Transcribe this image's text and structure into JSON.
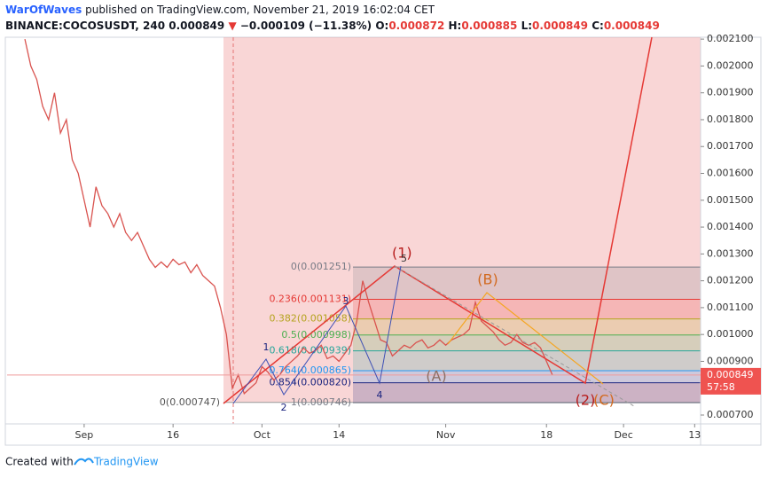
{
  "header": {
    "author": "WarOfWaves",
    "published": "published on TradingView.com, November 21, 2019 16:02:04 CET",
    "symbol": "BINANCE:COCOSUSDT, 240",
    "last": "0.000849",
    "change": "−0.000109 (−11.38%)",
    "ohlc": [
      {
        "label": "O:",
        "value": "0.000872"
      },
      {
        "label": "H:",
        "value": "0.000885"
      },
      {
        "label": "L:",
        "value": "0.000849"
      },
      {
        "label": "C:",
        "value": "0.000849"
      }
    ]
  },
  "chart_data": {
    "type": "line",
    "color": "#d9534f",
    "values": [
      null,
      null,
      null,
      0.0021,
      0.002,
      0.00195,
      0.00185,
      0.0018,
      0.0019,
      0.00175,
      0.0018,
      0.00165,
      0.0016,
      0.0015,
      0.0014,
      0.00155,
      0.00148,
      0.00145,
      0.0014,
      0.00145,
      0.00138,
      0.00135,
      0.00138,
      0.00133,
      0.00128,
      0.00125,
      0.00127,
      0.00125,
      0.00128,
      0.00126,
      0.00127,
      0.00123,
      0.00126,
      0.00122,
      0.0012,
      0.00118,
      0.0011,
      0.001,
      0.0008,
      0.00085,
      0.00078,
      0.0008,
      0.00082,
      0.00088,
      0.00086,
      0.00083,
      0.00085,
      0.00088,
      0.0009,
      0.00092,
      0.00095,
      0.00093,
      0.00094,
      0.00096,
      0.00091,
      0.00092,
      0.0009,
      0.00093,
      0.00096,
      0.00105,
      0.0012,
      0.00112,
      0.00105,
      0.00098,
      0.00097,
      0.00092,
      0.00094,
      0.00096,
      0.00095,
      0.00097,
      0.00098,
      0.00095,
      0.00096,
      0.00098,
      0.00096,
      0.00098,
      0.00099,
      0.001,
      0.00102,
      0.00112,
      0.00105,
      0.00103,
      0.00101,
      0.00098,
      0.00096,
      0.00097,
      0.001,
      0.00097,
      0.00096,
      0.00097,
      0.00095,
      0.0009,
      0.000849
    ],
    "xlim": [
      0,
      117
    ],
    "xticks": [
      {
        "value": 13,
        "label": "Sep"
      },
      {
        "value": 28,
        "label": "16"
      },
      {
        "value": 43,
        "label": "Oct"
      },
      {
        "value": 56,
        "label": "14"
      },
      {
        "value": 74,
        "label": "Nov"
      },
      {
        "value": 91,
        "label": "18"
      },
      {
        "value": 104,
        "label": "Dec"
      },
      {
        "value": 116,
        "label": "13"
      }
    ],
    "ylim": [
      0.000667,
      0.002107
    ],
    "yticks": [
      {
        "value": 0.0007,
        "label": "0.000700"
      },
      {
        "value": 0.0009,
        "label": "0.000900"
      },
      {
        "value": 0.001,
        "label": "0.001000"
      },
      {
        "value": 0.0011,
        "label": "0.001100"
      },
      {
        "value": 0.0012,
        "label": "0.001200"
      },
      {
        "value": 0.0013,
        "label": "0.001300"
      },
      {
        "value": 0.0014,
        "label": "0.001400"
      },
      {
        "value": 0.0015,
        "label": "0.001500"
      },
      {
        "value": 0.0016,
        "label": "0.001600"
      },
      {
        "value": 0.0017,
        "label": "0.001700"
      },
      {
        "value": 0.0018,
        "label": "0.001800"
      },
      {
        "value": 0.0019,
        "label": "0.001900"
      },
      {
        "value": 0.002,
        "label": "0.002000"
      },
      {
        "value": 0.0021,
        "label": "0.002100"
      }
    ],
    "current": {
      "value": 0.000849,
      "countdown": "57:58"
    },
    "box_low": {
      "label": "0(0.000747)",
      "value": 0.000747
    },
    "fib": [
      {
        "label": "0(0.001251)",
        "value": 0.001251,
        "color": "#787b86"
      },
      {
        "label": "0.236(0.001131)",
        "value": 0.001131,
        "color": "#e53935"
      },
      {
        "label": "0.382(0.001058)",
        "value": 0.001058,
        "color": "#b5a31f"
      },
      {
        "label": "0.5(0.000998)",
        "value": 0.000998,
        "color": "#4caf50"
      },
      {
        "label": "0.618(0.000939)",
        "value": 0.000939,
        "color": "#26a69a"
      },
      {
        "label": "0.764(0.000865)",
        "value": 0.000865,
        "color": "#2196f3"
      },
      {
        "label": "0.854(0.000820)",
        "value": 0.00082,
        "color": "#1a237e"
      },
      {
        "label": "1(0.000746)",
        "value": 0.000746,
        "color": "#787b86"
      }
    ],
    "waves": [
      "(1)",
      "5",
      "(B)",
      "(A)",
      "(2)",
      "(C)",
      "1",
      "2",
      "3",
      "4"
    ]
  },
  "footer": {
    "prefix": "Created with",
    "brand": "TradingView"
  }
}
